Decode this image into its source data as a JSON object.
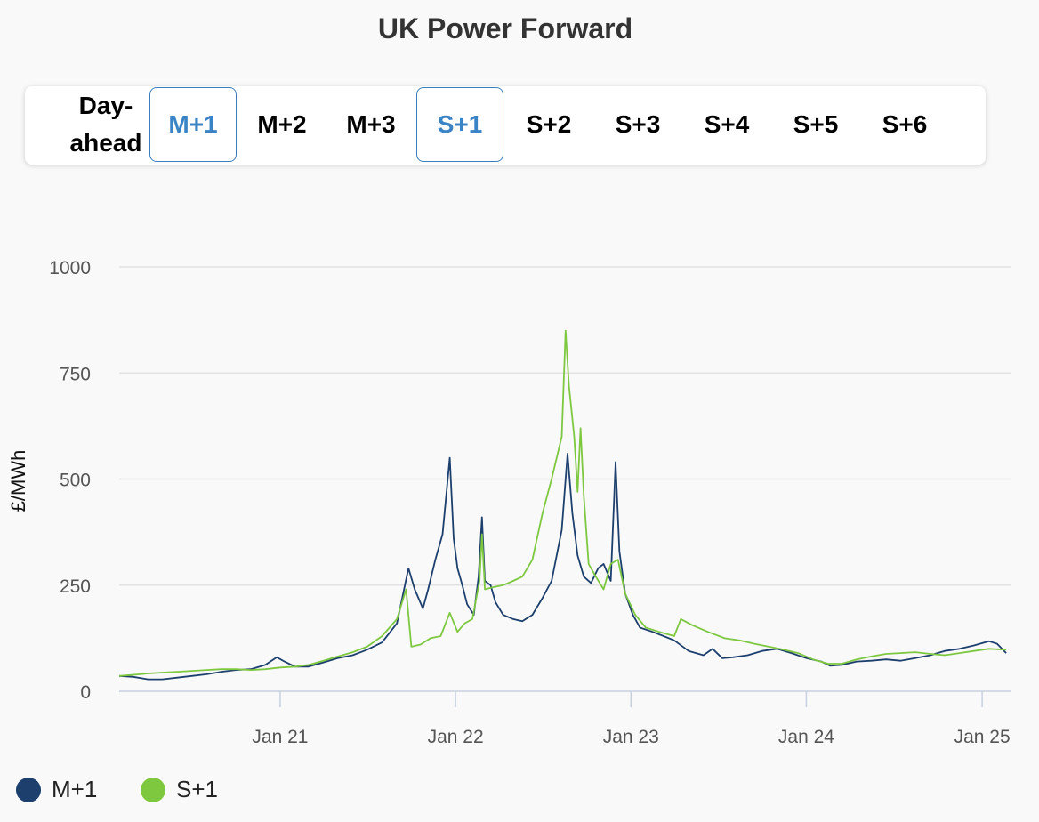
{
  "title": "UK Power Forward",
  "tabs": [
    {
      "label": "Day-ahead",
      "active": false
    },
    {
      "label": "M+1",
      "active": true
    },
    {
      "label": "M+2",
      "active": false
    },
    {
      "label": "M+3",
      "active": false
    },
    {
      "label": "S+1",
      "active": true
    },
    {
      "label": "S+2",
      "active": false
    },
    {
      "label": "S+3",
      "active": false
    },
    {
      "label": "S+4",
      "active": false
    },
    {
      "label": "S+5",
      "active": false
    },
    {
      "label": "S+6",
      "active": false
    }
  ],
  "colors": {
    "accent": "#3a83c5",
    "m1": "#1c3f6e",
    "s1": "#7ec840"
  },
  "chart_data": {
    "type": "line",
    "title": "UK Power Forward",
    "xlabel": "",
    "ylabel": "£/MWh",
    "ylim": [
      0,
      1000
    ],
    "yticks": [
      0,
      250,
      500,
      750,
      1000
    ],
    "xlim": [
      "2020-02-01",
      "2025-03-01"
    ],
    "xticks": [
      {
        "date": "2021-01-01",
        "label": "Jan 21"
      },
      {
        "date": "2022-01-01",
        "label": "Jan 22"
      },
      {
        "date": "2023-01-01",
        "label": "Jan 23"
      },
      {
        "date": "2024-01-01",
        "label": "Jan 24"
      },
      {
        "date": "2025-01-01",
        "label": "Jan 25"
      }
    ],
    "grid": true,
    "legend": "bottom-left",
    "series": [
      {
        "name": "M+1",
        "color": "#1c3f6e",
        "points": [
          [
            "2020-02-01",
            36
          ],
          [
            "2020-03-01",
            34
          ],
          [
            "2020-04-01",
            28
          ],
          [
            "2020-05-01",
            28
          ],
          [
            "2020-06-01",
            32
          ],
          [
            "2020-07-01",
            36
          ],
          [
            "2020-08-01",
            40
          ],
          [
            "2020-09-01",
            46
          ],
          [
            "2020-10-01",
            50
          ],
          [
            "2020-11-01",
            52
          ],
          [
            "2020-12-01",
            62
          ],
          [
            "2020-12-25",
            80
          ],
          [
            "2021-01-10",
            70
          ],
          [
            "2021-02-01",
            58
          ],
          [
            "2021-03-01",
            58
          ],
          [
            "2021-04-01",
            68
          ],
          [
            "2021-05-01",
            78
          ],
          [
            "2021-06-01",
            85
          ],
          [
            "2021-07-01",
            98
          ],
          [
            "2021-08-01",
            115
          ],
          [
            "2021-09-01",
            160
          ],
          [
            "2021-09-25",
            290
          ],
          [
            "2021-10-08",
            240
          ],
          [
            "2021-10-25",
            195
          ],
          [
            "2021-11-05",
            240
          ],
          [
            "2021-11-20",
            310
          ],
          [
            "2021-12-05",
            370
          ],
          [
            "2021-12-20",
            550
          ],
          [
            "2021-12-28",
            360
          ],
          [
            "2022-01-05",
            290
          ],
          [
            "2022-01-15",
            250
          ],
          [
            "2022-01-25",
            205
          ],
          [
            "2022-02-08",
            180
          ],
          [
            "2022-02-18",
            270
          ],
          [
            "2022-02-25",
            410
          ],
          [
            "2022-03-03",
            260
          ],
          [
            "2022-03-15",
            250
          ],
          [
            "2022-03-25",
            210
          ],
          [
            "2022-04-10",
            180
          ],
          [
            "2022-05-01",
            170
          ],
          [
            "2022-05-20",
            165
          ],
          [
            "2022-06-10",
            180
          ],
          [
            "2022-07-01",
            220
          ],
          [
            "2022-07-20",
            260
          ],
          [
            "2022-08-10",
            380
          ],
          [
            "2022-08-22",
            560
          ],
          [
            "2022-09-01",
            420
          ],
          [
            "2022-09-12",
            320
          ],
          [
            "2022-09-25",
            270
          ],
          [
            "2022-10-10",
            255
          ],
          [
            "2022-10-25",
            290
          ],
          [
            "2022-11-05",
            300
          ],
          [
            "2022-11-20",
            260
          ],
          [
            "2022-11-30",
            540
          ],
          [
            "2022-12-08",
            330
          ],
          [
            "2022-12-20",
            230
          ],
          [
            "2023-01-05",
            180
          ],
          [
            "2023-01-20",
            150
          ],
          [
            "2023-02-15",
            140
          ],
          [
            "2023-03-10",
            130
          ],
          [
            "2023-04-01",
            120
          ],
          [
            "2023-05-01",
            95
          ],
          [
            "2023-06-01",
            85
          ],
          [
            "2023-06-20",
            100
          ],
          [
            "2023-07-10",
            78
          ],
          [
            "2023-08-01",
            80
          ],
          [
            "2023-09-01",
            85
          ],
          [
            "2023-10-01",
            95
          ],
          [
            "2023-11-01",
            100
          ],
          [
            "2023-12-01",
            90
          ],
          [
            "2024-01-01",
            78
          ],
          [
            "2024-02-01",
            70
          ],
          [
            "2024-02-20",
            60
          ],
          [
            "2024-03-15",
            62
          ],
          [
            "2024-04-15",
            70
          ],
          [
            "2024-05-15",
            72
          ],
          [
            "2024-06-15",
            75
          ],
          [
            "2024-07-15",
            72
          ],
          [
            "2024-08-15",
            78
          ],
          [
            "2024-09-15",
            85
          ],
          [
            "2024-10-15",
            95
          ],
          [
            "2024-11-15",
            100
          ],
          [
            "2024-12-15",
            108
          ],
          [
            "2025-01-15",
            118
          ],
          [
            "2025-02-01",
            112
          ],
          [
            "2025-02-20",
            90
          ]
        ]
      },
      {
        "name": "S+1",
        "color": "#7ec840",
        "points": [
          [
            "2020-02-01",
            36
          ],
          [
            "2020-03-15",
            40
          ],
          [
            "2020-04-01",
            42
          ],
          [
            "2020-05-01",
            44
          ],
          [
            "2020-06-01",
            46
          ],
          [
            "2020-07-01",
            48
          ],
          [
            "2020-08-01",
            50
          ],
          [
            "2020-09-01",
            52
          ],
          [
            "2020-10-01",
            52
          ],
          [
            "2020-11-01",
            50
          ],
          [
            "2020-12-01",
            52
          ],
          [
            "2021-01-01",
            56
          ],
          [
            "2021-02-01",
            58
          ],
          [
            "2021-03-01",
            62
          ],
          [
            "2021-04-01",
            72
          ],
          [
            "2021-05-01",
            82
          ],
          [
            "2021-06-01",
            92
          ],
          [
            "2021-07-01",
            105
          ],
          [
            "2021-08-01",
            130
          ],
          [
            "2021-09-01",
            170
          ],
          [
            "2021-09-20",
            240
          ],
          [
            "2021-10-01",
            105
          ],
          [
            "2021-10-20",
            110
          ],
          [
            "2021-11-10",
            125
          ],
          [
            "2021-12-01",
            130
          ],
          [
            "2021-12-20",
            185
          ],
          [
            "2022-01-05",
            140
          ],
          [
            "2022-01-20",
            160
          ],
          [
            "2022-02-05",
            170
          ],
          [
            "2022-02-20",
            260
          ],
          [
            "2022-02-25",
            370
          ],
          [
            "2022-03-03",
            240
          ],
          [
            "2022-03-20",
            245
          ],
          [
            "2022-04-10",
            250
          ],
          [
            "2022-05-01",
            260
          ],
          [
            "2022-05-20",
            270
          ],
          [
            "2022-06-10",
            310
          ],
          [
            "2022-07-01",
            420
          ],
          [
            "2022-07-20",
            500
          ],
          [
            "2022-08-10",
            600
          ],
          [
            "2022-08-18",
            850
          ],
          [
            "2022-08-25",
            720
          ],
          [
            "2022-09-05",
            600
          ],
          [
            "2022-09-12",
            470
          ],
          [
            "2022-09-18",
            620
          ],
          [
            "2022-09-25",
            460
          ],
          [
            "2022-10-05",
            300
          ],
          [
            "2022-10-20",
            270
          ],
          [
            "2022-11-05",
            240
          ],
          [
            "2022-11-20",
            300
          ],
          [
            "2022-12-05",
            310
          ],
          [
            "2022-12-20",
            230
          ],
          [
            "2023-01-10",
            180
          ],
          [
            "2023-02-01",
            150
          ],
          [
            "2023-03-01",
            140
          ],
          [
            "2023-04-01",
            130
          ],
          [
            "2023-04-15",
            170
          ],
          [
            "2023-05-10",
            155
          ],
          [
            "2023-06-10",
            140
          ],
          [
            "2023-07-15",
            125
          ],
          [
            "2023-08-15",
            120
          ],
          [
            "2023-09-15",
            112
          ],
          [
            "2023-10-15",
            105
          ],
          [
            "2023-11-15",
            98
          ],
          [
            "2023-12-15",
            90
          ],
          [
            "2024-01-15",
            75
          ],
          [
            "2024-02-15",
            65
          ],
          [
            "2024-03-15",
            65
          ],
          [
            "2024-04-15",
            75
          ],
          [
            "2024-05-15",
            82
          ],
          [
            "2024-06-15",
            88
          ],
          [
            "2024-07-15",
            90
          ],
          [
            "2024-08-15",
            92
          ],
          [
            "2024-09-15",
            88
          ],
          [
            "2024-10-15",
            85
          ],
          [
            "2024-11-15",
            90
          ],
          [
            "2024-12-15",
            95
          ],
          [
            "2025-01-15",
            100
          ],
          [
            "2025-02-20",
            98
          ]
        ]
      }
    ]
  }
}
